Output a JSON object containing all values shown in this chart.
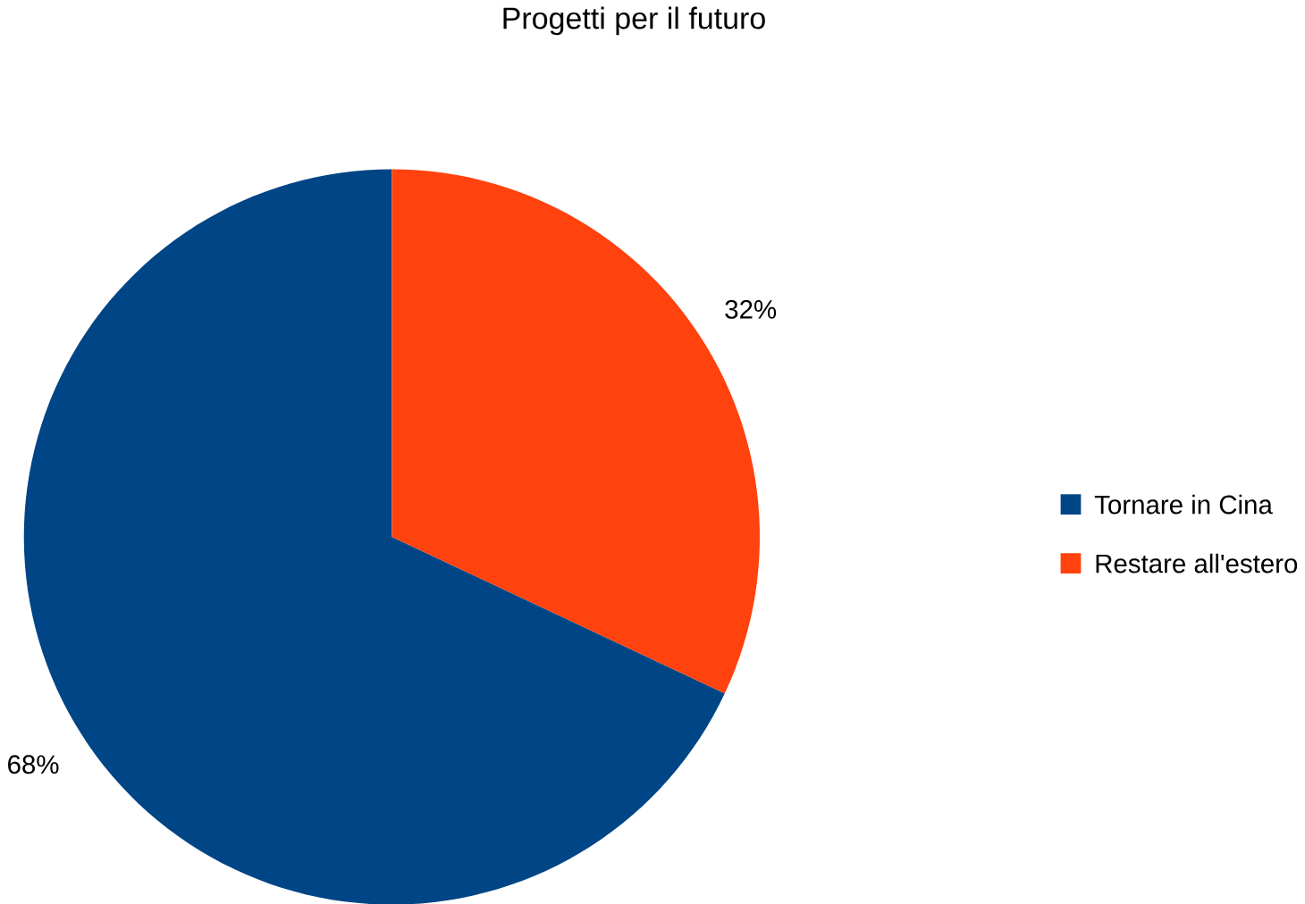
{
  "chart_data": {
    "type": "pie",
    "title": "Progetti per il futuro",
    "categories": [
      "Tornare in Cina",
      "Restare all'estero"
    ],
    "values": [
      68,
      32
    ],
    "colors": [
      "#004586",
      "#ff420e"
    ],
    "value_labels": [
      "68%",
      "32%"
    ],
    "legend": "right"
  }
}
